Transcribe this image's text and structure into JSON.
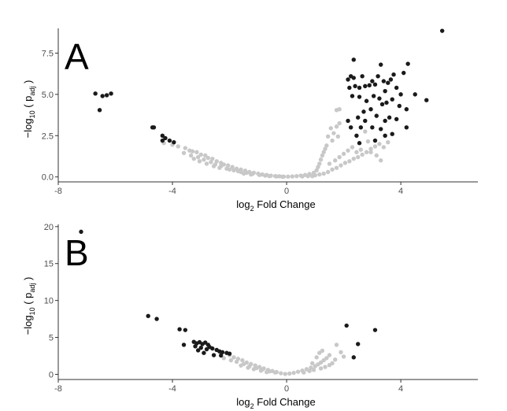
{
  "chart_data": [
    {
      "type": "scatter",
      "panel_label": "A",
      "xlabel_base": "log",
      "xlabel_sub": "2",
      "xlabel_rest": " Fold Change",
      "ylabel_prefix": "−log",
      "ylabel_sub": "10",
      "ylabel_mid": " ( p",
      "ylabel_sub2": "adj",
      "ylabel_suffix": " )",
      "xlim": [
        -8,
        6.7
      ],
      "ylim": [
        -0.3,
        9.0
      ],
      "xticks": [
        -8,
        -4,
        0,
        4
      ],
      "xtick_labels": [
        "-8",
        "-4",
        "0",
        "4"
      ],
      "yticks": [
        0,
        2.5,
        5,
        7.5
      ],
      "ytick_labels": [
        "0.0",
        "2.5",
        "5.0",
        "7.5"
      ],
      "grid": false,
      "colors": {
        "significant": "#1a1a1a",
        "not_significant": "#c8c8c8"
      },
      "series": [
        {
          "color": "#1a1a1a",
          "points": [
            [
              -6.7,
              5.05
            ],
            [
              -6.45,
              4.9
            ],
            [
              -6.3,
              4.95
            ],
            [
              -6.15,
              5.05
            ],
            [
              -6.55,
              4.05
            ],
            [
              -4.7,
              3.0
            ],
            [
              -4.65,
              3.0
            ],
            [
              -4.35,
              2.5
            ],
            [
              -4.25,
              2.35
            ],
            [
              -4.35,
              2.2
            ],
            [
              -4.1,
              2.2
            ],
            [
              -3.95,
              2.1
            ],
            [
              2.15,
              5.9
            ],
            [
              2.25,
              6.1
            ],
            [
              2.35,
              7.1
            ],
            [
              2.35,
              6.0
            ],
            [
              2.4,
              5.5
            ],
            [
              2.55,
              5.4
            ],
            [
              2.65,
              6.1
            ],
            [
              2.75,
              5.5
            ],
            [
              2.9,
              5.55
            ],
            [
              3.0,
              5.8
            ],
            [
              3.1,
              5.6
            ],
            [
              3.2,
              6.1
            ],
            [
              3.3,
              6.8
            ],
            [
              3.4,
              5.8
            ],
            [
              3.45,
              5.2
            ],
            [
              3.55,
              5.7
            ],
            [
              3.65,
              5.9
            ],
            [
              3.75,
              6.2
            ],
            [
              3.85,
              5.4
            ],
            [
              4.0,
              5.0
            ],
            [
              4.1,
              6.3
            ],
            [
              4.25,
              6.85
            ],
            [
              4.5,
              5.0
            ],
            [
              4.9,
              4.65
            ],
            [
              5.45,
              8.85
            ],
            [
              2.2,
              5.4
            ],
            [
              2.3,
              4.9
            ],
            [
              2.55,
              4.85
            ],
            [
              2.8,
              4.6
            ],
            [
              3.05,
              4.9
            ],
            [
              3.25,
              4.75
            ],
            [
              3.5,
              4.5
            ],
            [
              3.7,
              4.7
            ],
            [
              3.95,
              4.3
            ],
            [
              4.2,
              4.1
            ],
            [
              2.15,
              3.4
            ],
            [
              2.25,
              3.0
            ],
            [
              2.5,
              3.6
            ],
            [
              2.7,
              3.95
            ],
            [
              2.75,
              3.4
            ],
            [
              2.95,
              4.1
            ],
            [
              3.15,
              3.7
            ],
            [
              3.35,
              4.4
            ],
            [
              3.45,
              3.4
            ],
            [
              3.6,
              3.6
            ],
            [
              3.85,
              3.5
            ],
            [
              4.2,
              3.0
            ],
            [
              2.6,
              3.0
            ],
            [
              3.0,
              3.0
            ],
            [
              3.3,
              2.9
            ],
            [
              3.7,
              2.6
            ],
            [
              2.45,
              2.5
            ],
            [
              2.55,
              2.05
            ],
            [
              3.1,
              2.2
            ],
            [
              3.45,
              2.5
            ]
          ]
        },
        {
          "color": "#c8c8c8",
          "points": [
            [
              -4.3,
              2.05
            ],
            [
              -4.0,
              1.95
            ],
            [
              -3.8,
              1.85
            ],
            [
              -3.55,
              1.75
            ],
            [
              -3.4,
              1.6
            ],
            [
              -3.3,
              1.55
            ],
            [
              -3.15,
              1.5
            ],
            [
              -3.0,
              1.35
            ],
            [
              -2.85,
              1.3
            ],
            [
              -2.75,
              1.15
            ],
            [
              -2.6,
              1.1
            ],
            [
              -2.45,
              0.95
            ],
            [
              -2.3,
              0.85
            ],
            [
              -2.2,
              0.75
            ],
            [
              -2.05,
              0.7
            ],
            [
              -1.9,
              0.6
            ],
            [
              -1.75,
              0.5
            ],
            [
              -1.6,
              0.45
            ],
            [
              -1.45,
              0.38
            ],
            [
              -1.3,
              0.3
            ],
            [
              -1.15,
              0.25
            ],
            [
              -1.0,
              0.2
            ],
            [
              -0.85,
              0.15
            ],
            [
              -0.7,
              0.12
            ],
            [
              -0.55,
              0.08
            ],
            [
              -0.4,
              0.05
            ],
            [
              -0.25,
              0.04
            ],
            [
              -0.1,
              0.02
            ],
            [
              -3.6,
              1.45
            ],
            [
              -3.35,
              1.3
            ],
            [
              -3.1,
              1.2
            ],
            [
              -2.9,
              1.05
            ],
            [
              -2.65,
              0.9
            ],
            [
              -2.5,
              0.75
            ],
            [
              -2.3,
              0.65
            ],
            [
              -2.1,
              0.5
            ],
            [
              -1.85,
              0.4
            ],
            [
              -1.6,
              0.3
            ],
            [
              -1.4,
              0.25
            ],
            [
              -1.2,
              0.18
            ],
            [
              -0.95,
              0.12
            ],
            [
              -0.75,
              0.08
            ],
            [
              -3.25,
              1.1
            ],
            [
              -3.05,
              0.95
            ],
            [
              -2.8,
              0.8
            ],
            [
              -2.55,
              0.65
            ],
            [
              -2.35,
              0.55
            ],
            [
              -2.0,
              0.45
            ],
            [
              -1.7,
              0.35
            ],
            [
              -1.5,
              0.2
            ],
            [
              -1.25,
              0.15
            ],
            [
              -0.6,
              0.05
            ],
            [
              -0.35,
              0.03
            ],
            [
              -0.15,
              0.01
            ],
            [
              0.05,
              0.02
            ],
            [
              0.2,
              0.03
            ],
            [
              0.35,
              0.05
            ],
            [
              0.5,
              0.08
            ],
            [
              0.65,
              0.12
            ],
            [
              0.8,
              0.18
            ],
            [
              0.95,
              0.25
            ],
            [
              1.05,
              0.4
            ],
            [
              1.1,
              0.6
            ],
            [
              1.15,
              0.8
            ],
            [
              1.2,
              1.05
            ],
            [
              1.25,
              1.3
            ],
            [
              1.3,
              1.5
            ],
            [
              1.35,
              1.7
            ],
            [
              1.4,
              1.9
            ],
            [
              1.3,
              0.2
            ],
            [
              1.45,
              0.3
            ],
            [
              1.6,
              0.45
            ],
            [
              1.75,
              0.55
            ],
            [
              1.9,
              0.7
            ],
            [
              2.05,
              0.85
            ],
            [
              2.2,
              0.95
            ],
            [
              2.35,
              1.1
            ],
            [
              2.5,
              1.2
            ],
            [
              2.65,
              1.35
            ],
            [
              2.8,
              1.5
            ],
            [
              2.95,
              1.7
            ],
            [
              3.1,
              1.85
            ],
            [
              3.25,
              2.0
            ],
            [
              3.4,
              1.8
            ],
            [
              3.55,
              2.1
            ],
            [
              1.5,
              0.8
            ],
            [
              1.7,
              1.0
            ],
            [
              1.85,
              1.2
            ],
            [
              2.0,
              1.4
            ],
            [
              2.15,
              1.6
            ],
            [
              2.3,
              1.8
            ],
            [
              2.45,
              1.5
            ],
            [
              2.6,
              1.65
            ],
            [
              1.45,
              2.45
            ],
            [
              1.55,
              2.95
            ],
            [
              1.6,
              2.2
            ],
            [
              1.65,
              2.65
            ],
            [
              1.75,
              3.05
            ],
            [
              1.8,
              2.45
            ],
            [
              1.85,
              3.25
            ],
            [
              1.75,
              4.05
            ],
            [
              1.85,
              4.1
            ],
            [
              2.75,
              2.75
            ],
            [
              2.85,
              2.15
            ],
            [
              2.95,
              1.5
            ],
            [
              3.15,
              1.3
            ],
            [
              3.3,
              1.0
            ],
            [
              0.9,
              0.05
            ],
            [
              1.0,
              0.1
            ],
            [
              1.15,
              0.15
            ],
            [
              0.75,
              0.05
            ],
            [
              0.55,
              0.03
            ]
          ]
        }
      ]
    },
    {
      "type": "scatter",
      "panel_label": "B",
      "xlabel_base": "log",
      "xlabel_sub": "2",
      "xlabel_rest": " Fold Change",
      "ylabel_prefix": "−log",
      "ylabel_sub": "10",
      "ylabel_mid": " ( p",
      "ylabel_sub2": "adj",
      "ylabel_suffix": " )",
      "xlim": [
        -8,
        6.7
      ],
      "ylim": [
        -0.7,
        20.3
      ],
      "xticks": [
        -8,
        -4,
        0,
        4
      ],
      "xtick_labels": [
        "-8",
        "-4",
        "0",
        "4"
      ],
      "yticks": [
        0,
        5,
        10,
        15,
        20
      ],
      "ytick_labels": [
        "0",
        "5",
        "10",
        "15",
        "20"
      ],
      "grid": false,
      "colors": {
        "significant": "#1a1a1a",
        "not_significant": "#c8c8c8"
      },
      "series": [
        {
          "color": "#1a1a1a",
          "points": [
            [
              -7.2,
              19.3
            ],
            [
              -4.85,
              7.9
            ],
            [
              -4.55,
              7.5
            ],
            [
              -3.75,
              6.1
            ],
            [
              -3.55,
              6.0
            ],
            [
              -3.6,
              4.0
            ],
            [
              -3.25,
              4.4
            ],
            [
              -3.15,
              4.2
            ],
            [
              -3.05,
              4.35
            ],
            [
              -2.95,
              4.1
            ],
            [
              -2.85,
              4.3
            ],
            [
              -2.75,
              4.0
            ],
            [
              -2.7,
              3.7
            ],
            [
              -2.6,
              3.5
            ],
            [
              -2.45,
              3.3
            ],
            [
              -2.35,
              3.1
            ],
            [
              -2.25,
              3.0
            ],
            [
              -2.1,
              2.9
            ],
            [
              -2.0,
              2.8
            ],
            [
              -3.2,
              3.8
            ],
            [
              -3.0,
              3.6
            ],
            [
              -2.8,
              3.4
            ],
            [
              -2.9,
              2.9
            ],
            [
              -3.1,
              3.25
            ],
            [
              -2.55,
              2.6
            ],
            [
              -2.3,
              2.55
            ],
            [
              2.1,
              6.6
            ],
            [
              3.1,
              6.0
            ],
            [
              2.5,
              4.1
            ],
            [
              2.35,
              2.3
            ]
          ]
        },
        {
          "color": "#c8c8c8",
          "points": [
            [
              -2.0,
              2.6
            ],
            [
              -1.85,
              2.3
            ],
            [
              -1.7,
              2.1
            ],
            [
              -1.55,
              1.9
            ],
            [
              -1.4,
              1.6
            ],
            [
              -1.25,
              1.4
            ],
            [
              -1.1,
              1.2
            ],
            [
              -0.95,
              1.0
            ],
            [
              -0.8,
              0.8
            ],
            [
              -0.65,
              0.6
            ],
            [
              -0.5,
              0.45
            ],
            [
              -0.35,
              0.3
            ],
            [
              -0.2,
              0.15
            ],
            [
              -0.05,
              0.05
            ],
            [
              -2.2,
              2.2
            ],
            [
              -1.95,
              1.9
            ],
            [
              -1.75,
              1.7
            ],
            [
              -1.5,
              1.4
            ],
            [
              -1.3,
              1.1
            ],
            [
              -1.05,
              0.85
            ],
            [
              -0.85,
              0.65
            ],
            [
              -0.6,
              0.4
            ],
            [
              -0.4,
              0.25
            ],
            [
              -1.6,
              1.2
            ],
            [
              -1.35,
              0.9
            ],
            [
              -1.15,
              0.7
            ],
            [
              -0.9,
              0.5
            ],
            [
              -0.7,
              0.3
            ],
            [
              0.1,
              0.1
            ],
            [
              0.25,
              0.2
            ],
            [
              0.4,
              0.35
            ],
            [
              0.55,
              0.5
            ],
            [
              0.7,
              0.7
            ],
            [
              0.85,
              0.9
            ],
            [
              1.0,
              1.1
            ],
            [
              1.1,
              1.35
            ],
            [
              1.2,
              1.6
            ],
            [
              1.3,
              1.9
            ],
            [
              1.4,
              2.2
            ],
            [
              1.5,
              2.6
            ],
            [
              1.2,
              0.8
            ],
            [
              1.35,
              1.0
            ],
            [
              1.5,
              1.25
            ],
            [
              1.6,
              1.5
            ],
            [
              1.05,
              2.3
            ],
            [
              1.15,
              2.9
            ],
            [
              1.25,
              3.2
            ],
            [
              1.75,
              4.0
            ],
            [
              1.9,
              3.0
            ],
            [
              2.0,
              2.4
            ],
            [
              1.7,
              2.0
            ],
            [
              0.9,
              1.5
            ],
            [
              0.95,
              0.6
            ],
            [
              0.8,
              0.45
            ],
            [
              0.6,
              0.25
            ]
          ]
        }
      ]
    }
  ]
}
